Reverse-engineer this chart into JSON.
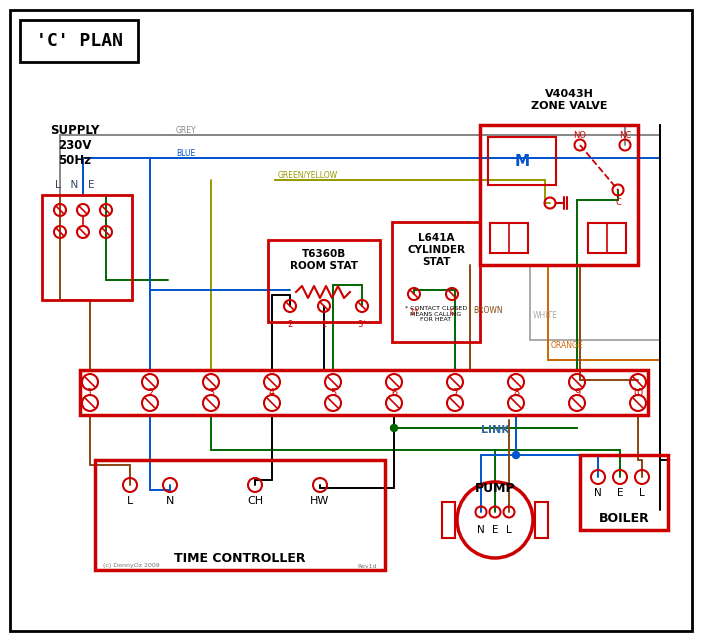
{
  "title": "'C' PLAN",
  "bg_color": "#ffffff",
  "red": "#cc0000",
  "blue": "#0055cc",
  "green": "#006600",
  "brown": "#8B4513",
  "grey": "#888888",
  "green_yellow": "#999900",
  "orange": "#cc6600",
  "black": "#000000",
  "dark_text": "#336699",
  "zone_valve_label": "V4043H\nZONE VALVE",
  "room_stat_label": "T6360B\nROOM STAT",
  "cyl_stat_label": "L641A\nCYLINDER\nSTAT",
  "time_ctrl_label": "TIME CONTROLLER",
  "pump_label": "PUMP",
  "boiler_label": "BOILER",
  "footnote": "(c) DennyOz 2009",
  "revision": "Rev1d",
  "contact_note": "* CONTACT CLOSED\nMEANS CALLING\nFOR HEAT"
}
